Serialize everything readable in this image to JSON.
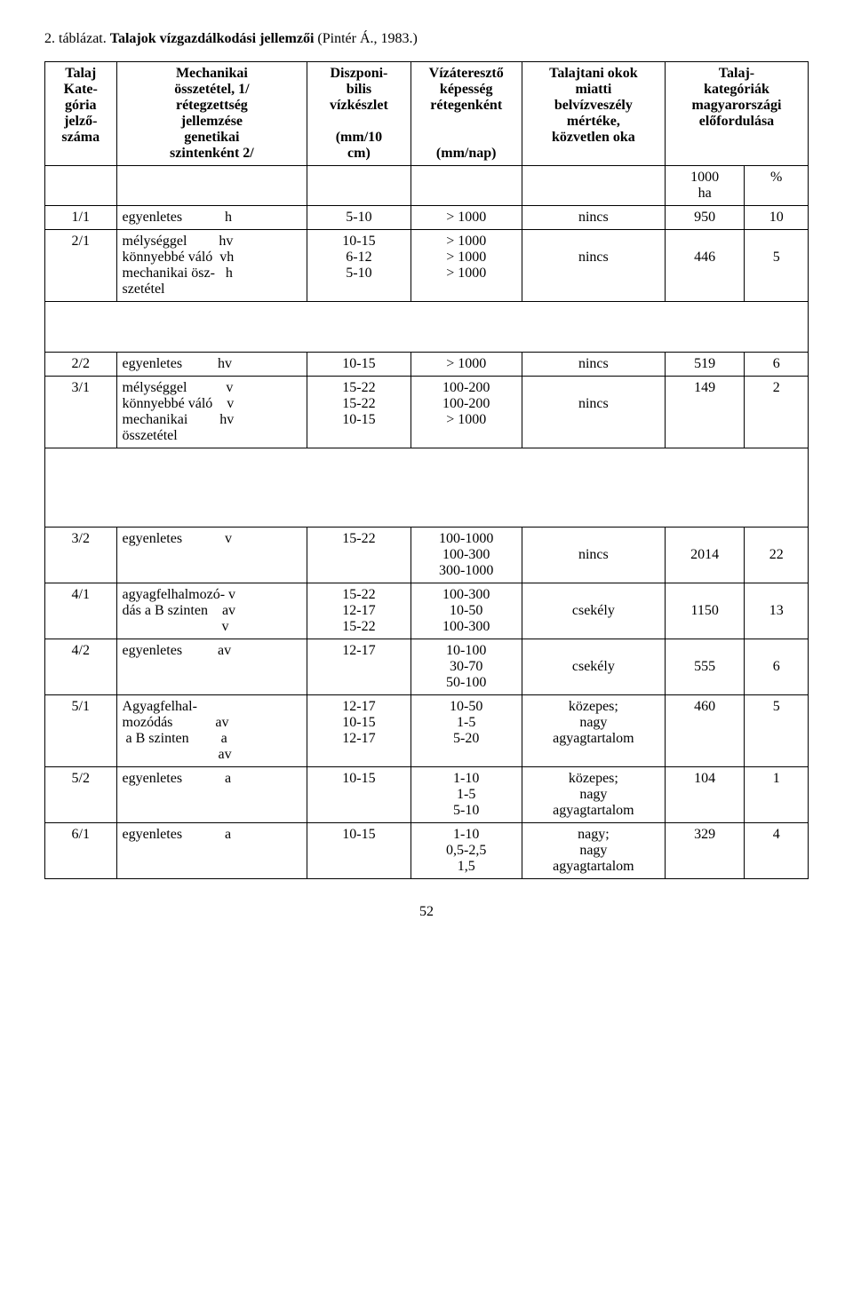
{
  "title_prefix": "2. táblázat. ",
  "title_bold": "Talajok vízgazdálkodási jellemzői",
  "title_suffix": "  (Pintér Á., 1983.)",
  "headers": {
    "c1": "Talaj\nKate-\ngória\njelző-\nszáma",
    "c2": "Mechanikai\nösszetétel, 1/\nrétegzettség\njellemzése\ngenetikai\nszintenként 2/",
    "c3_top": "Diszponi-\nbilis\nvízkészlet",
    "c3_bot": "(mm/10\ncm)",
    "c4_top": "Vízáteresztő\nképesség\nrétegenként",
    "c4_bot": "(mm/nap)",
    "c5": "Talajtani okok\nmiatti\nbelvízveszély\nmértéke,\nközvetlen oka",
    "c67": "Talaj-\nkategóriák\nmagyarországi\nelőfordulása",
    "c6_sub": "1000\nha",
    "c7_sub": "%"
  },
  "rows": [
    {
      "id": "1/1",
      "desc": "egyenletes            h",
      "vk": "5-10",
      "va": "> 1000",
      "ok": "nincs",
      "ha": "950",
      "pct": "10"
    },
    {
      "id": "2/1",
      "desc": "mélységgel         hv\nkönnyebbé váló  vh\nmechanikai ösz-   h\nszetétel",
      "vk": "10-15\n6-12\n5-10",
      "va": "> 1000\n> 1000\n> 1000",
      "ok": "\nnincs",
      "ha": "\n446",
      "pct": "\n5"
    },
    {
      "spacer": true
    },
    {
      "id": "2/2",
      "desc": "egyenletes          hv",
      "vk": "10-15",
      "va": "> 1000",
      "ok": "nincs",
      "ha": "519",
      "pct": "6"
    },
    {
      "id": "3/1",
      "desc": "mélységgel           v\nkönnyebbé váló    v\nmechanikai         hv\nösszetétel",
      "vk": "15-22\n15-22\n10-15",
      "va": "100-200\n100-200\n> 1000",
      "ok": "\nnincs",
      "ha": "149",
      "pct": "2"
    },
    {
      "spacer": true,
      "big": true
    },
    {
      "id": "3/2",
      "desc": "egyenletes            v",
      "vk": "15-22",
      "va": "100-1000\n100-300\n300-1000",
      "ok": "\nnincs",
      "ha": "\n2014",
      "pct": "\n22"
    },
    {
      "id": "4/1",
      "desc": "agyagfelhalmozó- v\ndás a B szinten    av\n                            v",
      "vk": "15-22\n12-17\n15-22",
      "va": "100-300\n10-50\n100-300",
      "ok": "\ncsekély",
      "ha": "\n1150",
      "pct": "\n13"
    },
    {
      "id": "4/2",
      "desc": "egyenletes          av",
      "vk": "12-17",
      "va": "10-100\n30-70\n50-100",
      "ok": "\ncsekély",
      "ha": "\n555",
      "pct": "\n6"
    },
    {
      "id": "5/1",
      "desc": "Agyagfelhal-\nmozódás            av\n a B szinten         a\n                           av",
      "vk": "12-17\n10-15\n12-17",
      "va": "10-50\n1-5\n5-20",
      "ok": "közepes;\nnagy\nagyagtartalom",
      "ha": "460",
      "pct": "5"
    },
    {
      "id": "5/2",
      "desc": "egyenletes            a",
      "vk": "10-15",
      "va": "1-10\n1-5\n5-10",
      "ok": "közepes;\nnagy\nagyagtartalom",
      "ha": "104",
      "pct": "1"
    },
    {
      "id": "6/1",
      "desc": "egyenletes            a",
      "vk": "10-15",
      "va": "1-10\n0,5-2,5\n1,5",
      "ok": "nagy;\nnagy\nagyagtartalom",
      "ha": "329",
      "pct": "4"
    }
  ],
  "page_number": "52"
}
